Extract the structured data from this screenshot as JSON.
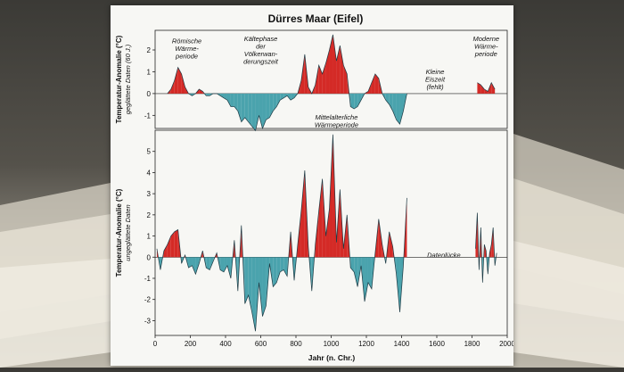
{
  "chart_data": [
    {
      "type": "area",
      "title": "Dürres Maar (Eifel)",
      "ylabel": "Temperatur-Anomalie (°C)",
      "ylabel_sub": "geglättete Daten (60 J.)",
      "xlim": [
        0,
        2000
      ],
      "ylim": [
        -1.6,
        2.9
      ],
      "yticks": [
        -1,
        0,
        1,
        2
      ],
      "series": [
        {
          "x": [
            70,
            90,
            110,
            130,
            150,
            170,
            190,
            210,
            230,
            250,
            270,
            290,
            310,
            330,
            350,
            370,
            390,
            410,
            430,
            450,
            470,
            490,
            510,
            530,
            550,
            570,
            590,
            610,
            630,
            650,
            670,
            690,
            710,
            730,
            750,
            770,
            790,
            810,
            830,
            850,
            870,
            890,
            910,
            930,
            950,
            970,
            990,
            1010,
            1030,
            1050,
            1070,
            1090,
            1110,
            1130,
            1150,
            1170,
            1190,
            1210,
            1230,
            1250,
            1270,
            1290,
            1310,
            1330,
            1350,
            1370,
            1390,
            1410,
            1430
          ],
          "values": [
            0,
            0.2,
            0.6,
            1.2,
            0.9,
            0.3,
            0,
            -0.1,
            0,
            0.2,
            0.1,
            -0.1,
            -0.1,
            0,
            0,
            -0.1,
            -0.2,
            -0.3,
            -0.6,
            -0.6,
            -0.8,
            -1.3,
            -1.1,
            -1.3,
            -1.5,
            -1.7,
            -1.0,
            -1.6,
            -1.2,
            -1.1,
            -0.8,
            -0.6,
            -0.3,
            -0.2,
            -0.1,
            -0.3,
            -0.2,
            0,
            0.6,
            1.8,
            0.3,
            0,
            0.4,
            1.3,
            0.9,
            1.4,
            2.0,
            2.7,
            1.5,
            2.2,
            1.3,
            0.9,
            -0.6,
            -0.7,
            -0.6,
            -0.3,
            0,
            0.1,
            0.5,
            0.9,
            0.7,
            0,
            -0.3,
            -0.5,
            -0.8,
            -1.2,
            -1.4,
            -0.8,
            0
          ]
        },
        {
          "x": [
            1830,
            1850,
            1870,
            1890,
            1910,
            1930
          ],
          "values": [
            0.5,
            0.4,
            0.2,
            0.1,
            0.5,
            0.2
          ]
        }
      ],
      "annotations": [
        {
          "lines": [
            "Römische",
            "Wärme-",
            "periode"
          ],
          "x": 180,
          "y": 2.3
        },
        {
          "lines": [
            "Kältephase",
            "der",
            "Völkerwan-",
            "derungszeit"
          ],
          "x": 600,
          "y": 2.4
        },
        {
          "lines": [
            "Mittelalterliche",
            "Wärmeperiode"
          ],
          "x": 1030,
          "y": -1.2
        },
        {
          "lines": [
            "Kleine",
            "Eiszeit",
            "(fehlt)"
          ],
          "x": 1590,
          "y": 0.9
        },
        {
          "lines": [
            "Moderne",
            "Wärme-",
            "periode"
          ],
          "x": 1880,
          "y": 2.4
        }
      ]
    },
    {
      "type": "area",
      "ylabel": "Temperatur-Anomalie (°C)",
      "ylabel_sub": "ungeglättete Daten",
      "xlabel": "Jahr (n. Chr.)",
      "xlim": [
        0,
        2000
      ],
      "ylim": [
        -3.7,
        6
      ],
      "yticks": [
        -3,
        -2,
        -1,
        0,
        1,
        2,
        3,
        4,
        5
      ],
      "xticks": [
        0,
        200,
        400,
        600,
        800,
        1000,
        1200,
        1400,
        1600,
        1800,
        2000
      ],
      "series": [
        {
          "x": [
            10,
            30,
            50,
            70,
            90,
            110,
            130,
            150,
            170,
            190,
            210,
            230,
            250,
            270,
            290,
            310,
            330,
            350,
            370,
            390,
            410,
            430,
            450,
            470,
            490,
            510,
            530,
            550,
            570,
            590,
            610,
            630,
            650,
            670,
            690,
            710,
            730,
            750,
            770,
            790,
            810,
            830,
            850,
            870,
            890,
            910,
            930,
            950,
            970,
            990,
            1010,
            1030,
            1050,
            1070,
            1090,
            1110,
            1130,
            1150,
            1170,
            1190,
            1210,
            1230,
            1250,
            1270,
            1290,
            1310,
            1330,
            1350,
            1370,
            1390,
            1410,
            1430
          ],
          "values": [
            0.4,
            -0.6,
            0.3,
            0.6,
            1.0,
            1.2,
            1.3,
            -0.3,
            0.1,
            -0.5,
            -0.4,
            -0.8,
            -0.3,
            0.3,
            -0.5,
            -0.6,
            -0.2,
            0.2,
            -0.6,
            -0.7,
            -0.4,
            -1.0,
            0.8,
            -1.6,
            1.5,
            -2.2,
            -1.8,
            -2.6,
            -3.5,
            -1.2,
            -2.8,
            -2.3,
            -0.3,
            -1.4,
            -1.2,
            -0.7,
            -0.6,
            -0.9,
            1.2,
            -1.1,
            0.6,
            2.2,
            4.1,
            0.5,
            -1.6,
            0.6,
            2.2,
            3.7,
            1.0,
            2.3,
            5.8,
            0.7,
            3.2,
            0.4,
            2.0,
            -0.5,
            -0.7,
            -1.4,
            -0.4,
            -2.1,
            -1.2,
            -1.5,
            0.2,
            1.8,
            0.6,
            -0.3,
            1.2,
            0.5,
            -0.8,
            -2.6,
            -0.4,
            2.8
          ]
        },
        {
          "x": [
            1820,
            1830,
            1840,
            1850,
            1860,
            1870,
            1880,
            1890,
            1900,
            1910,
            1920,
            1930,
            1940
          ],
          "values": [
            0.4,
            2.1,
            -0.6,
            1.4,
            -1.2,
            0.6,
            0.3,
            -0.8,
            0.2,
            0.6,
            1.4,
            -0.4,
            0.2
          ]
        }
      ],
      "annotations": [
        {
          "lines": [
            "Datenlücke"
          ],
          "x": 1640,
          "y": 0
        }
      ]
    }
  ]
}
